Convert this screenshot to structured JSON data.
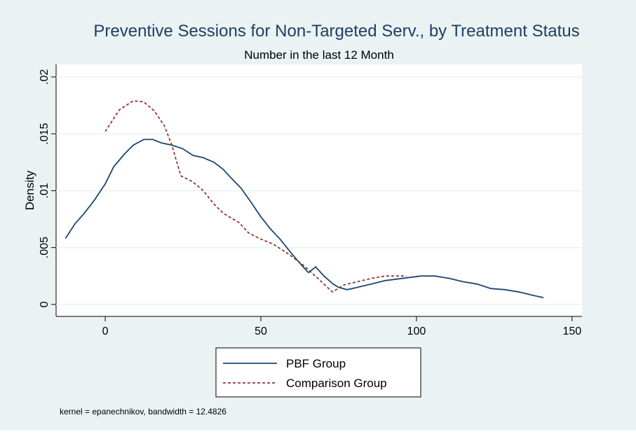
{
  "chart_data": {
    "type": "line",
    "title": "Preventive Sessions for Non-Targeted Serv., by Treatment Status",
    "subtitle": "Number in the last 12 Month",
    "y_label": "Density",
    "note": "kernel = epanechnikov, bandwidth = 12.4826",
    "xlim": [
      -15.8,
      153.2
    ],
    "xticks": [
      0,
      50,
      100,
      150
    ],
    "ylim": [
      -0.00105,
      0.0211
    ],
    "yticks": [
      0,
      {
        "value": 0.005,
        "label": ".005"
      },
      {
        "value": 0.01,
        "label": ".01"
      },
      {
        "value": 0.015,
        "label": ".015"
      },
      {
        "value": 0.02,
        "label": ".02"
      }
    ],
    "grid": true,
    "legend": "bottom",
    "series": [
      {
        "name": "PBF Group",
        "color": "#1a476f",
        "line_style": "solid",
        "x": [
          -12.8,
          -9.7,
          -6.8,
          -3.4,
          0,
          2.7,
          6.1,
          9,
          12.4,
          15.3,
          18,
          21.4,
          24.8,
          28.2,
          31.5,
          34.9,
          37.8,
          40.5,
          43.7,
          46.8,
          50,
          53.2,
          56.3,
          59.5,
          62.6,
          65.3,
          67.6,
          70.3,
          73.2,
          75,
          77.7,
          81,
          85.6,
          90,
          95.7,
          101.4,
          105.9,
          110.4,
          114.9,
          119.4,
          123.9,
          128.4,
          132.9,
          137.4,
          140.8
        ],
        "values": [
          0.0058,
          0.0071,
          0.008,
          0.0092,
          0.0106,
          0.0121,
          0.0132,
          0.014,
          0.0145,
          0.0145,
          0.0142,
          0.014,
          0.0137,
          0.0131,
          0.0129,
          0.0125,
          0.0119,
          0.0111,
          0.0102,
          0.009,
          0.0077,
          0.0066,
          0.0057,
          0.0046,
          0.0036,
          0.0028,
          0.0033,
          0.0025,
          0.0018,
          0.0015,
          0.0013,
          0.0015,
          0.0018,
          0.0021,
          0.0023,
          0.0025,
          0.0025,
          0.0023,
          0.002,
          0.0018,
          0.0014,
          0.0013,
          0.0011,
          0.0008,
          0.0006
        ]
      },
      {
        "name": "Comparison Group",
        "color": "#90353b",
        "line_style": "dashed",
        "x": [
          0,
          4.5,
          9,
          12.4,
          15.8,
          19,
          21.4,
          24.3,
          28,
          31.5,
          35,
          38,
          43,
          46,
          49.5,
          54,
          58.5,
          63,
          67.5,
          71,
          73,
          76.6,
          81,
          85.6,
          90,
          94.6,
          96.8
        ],
        "values": [
          0.0152,
          0.0171,
          0.0179,
          0.0178,
          0.017,
          0.0157,
          0.014,
          0.0113,
          0.0108,
          0.01,
          0.0088,
          0.008,
          0.0072,
          0.0063,
          0.0058,
          0.0053,
          0.0045,
          0.0036,
          0.0025,
          0.0016,
          0.0011,
          0.0017,
          0.002,
          0.0023,
          0.0025,
          0.0025,
          0.0025
        ]
      }
    ]
  }
}
